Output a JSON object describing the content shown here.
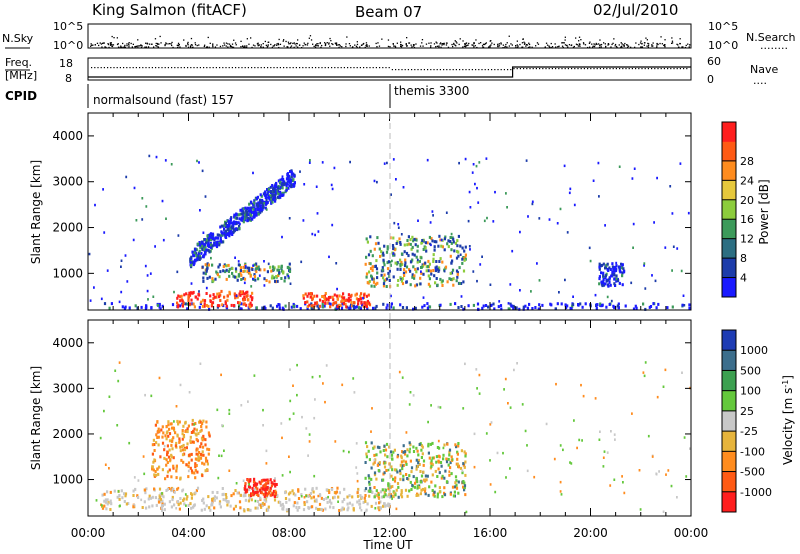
{
  "header": {
    "station": "King Salmon (fitACF)",
    "beam": "Beam 07",
    "date": "02/Jul/2010"
  },
  "ancillary": {
    "nsky_label": "N.Sky",
    "nsearch_label": "N.Search",
    "nsearch_line": "........",
    "freq_label_1": "Freq.",
    "freq_label_2": "[MHz]",
    "nave_label": "Nave",
    "nave_line": "....",
    "cpid_label": "CPID",
    "left_ticks_top": [
      "10^5",
      "10^0"
    ],
    "right_ticks_top": [
      "10^5",
      "10^0"
    ],
    "left_ticks_freq": [
      "18",
      "8"
    ],
    "right_ticks_nave": [
      "60",
      "0"
    ],
    "cpid_segments": [
      {
        "label": "normalsound (fast) 157",
        "start_hour": 0
      },
      {
        "label": "themis 3300",
        "start_hour": 12
      }
    ]
  },
  "chart_data": [
    {
      "type": "heatmap",
      "panel": "power",
      "ylabel": "Slant Range [km]",
      "xlabel": "",
      "xlim": [
        0,
        24
      ],
      "ylim": [
        200,
        4500
      ],
      "y_ticks": [
        "1000",
        "2000",
        "3000",
        "4000"
      ],
      "x_ticks": [
        "00:00",
        "04:00",
        "08:00",
        "12:00",
        "16:00",
        "20:00",
        "00:00"
      ],
      "colorbar": {
        "label": "Power [dB]",
        "ticks": [
          "4",
          "8",
          "12",
          "16",
          "20",
          "24",
          "28"
        ],
        "colors": [
          "#1a1aff",
          "#1c3caa",
          "#2c6e82",
          "#3c9a5a",
          "#8ccc3c",
          "#e6c83c",
          "#ff8c1e",
          "#ff5a14",
          "#ff1e1e"
        ]
      },
      "regions": [
        {
          "name": "near-range band",
          "t0": 0.5,
          "t1": 24,
          "r0": 200,
          "r1": 330,
          "level": "low"
        },
        {
          "name": "E-region strong echoes",
          "t0": 3.5,
          "t1": 6.5,
          "r0": 250,
          "r1": 600,
          "level": "high"
        },
        {
          "name": "E-region strong echoes 2",
          "t0": 8.5,
          "t1": 11.2,
          "r0": 250,
          "r1": 550,
          "level": "high"
        },
        {
          "name": "mid band",
          "t0": 4.5,
          "t1": 8.0,
          "r0": 800,
          "r1": 1200,
          "level": "mid"
        },
        {
          "name": "rising arc",
          "t0": 4.0,
          "t1": 8.2,
          "r0": 1200,
          "r1": 3200,
          "level": "low"
        },
        {
          "name": "12UT patch",
          "t0": 11.0,
          "t1": 15.0,
          "r0": 700,
          "r1": 1800,
          "level": "mid"
        },
        {
          "name": "late patch",
          "t0": 20.3,
          "t1": 21.3,
          "r0": 700,
          "r1": 1200,
          "level": "low"
        }
      ]
    },
    {
      "type": "heatmap",
      "panel": "velocity",
      "ylabel": "Slant Range [km]",
      "xlabel": "Time UT",
      "xlim": [
        0,
        24
      ],
      "ylim": [
        200,
        4500
      ],
      "y_ticks": [
        "1000",
        "2000",
        "3000",
        "4000"
      ],
      "x_ticks": [
        "00:00",
        "04:00",
        "08:00",
        "12:00",
        "16:00",
        "20:00",
        "00:00"
      ],
      "colorbar": {
        "label": "Velocity [m s^-1]",
        "ticks": [
          "1000",
          "500",
          "100",
          "25",
          "-25",
          "-100",
          "-500",
          "-1000"
        ],
        "colors": [
          "#1e3cb4",
          "#3c6e8c",
          "#3ca050",
          "#64c83c",
          "#c8c8c8",
          "#e6b43c",
          "#ff8c1e",
          "#ff5a14",
          "#ff1e1e"
        ]
      },
      "regions": [
        {
          "name": "ground scatter band",
          "t0": 0.5,
          "t1": 12.0,
          "r0": 300,
          "r1": 800,
          "level": "gs"
        },
        {
          "name": "negative patch",
          "t0": 2.5,
          "t1": 4.8,
          "r0": 1000,
          "r1": 2300,
          "level": "neg"
        },
        {
          "name": "strong negative",
          "t0": 6.2,
          "t1": 7.5,
          "r0": 600,
          "r1": 1000,
          "level": "neg-strong"
        },
        {
          "name": "12UT patch",
          "t0": 11.0,
          "t1": 15.0,
          "r0": 600,
          "r1": 1800,
          "level": "mix"
        }
      ]
    }
  ]
}
